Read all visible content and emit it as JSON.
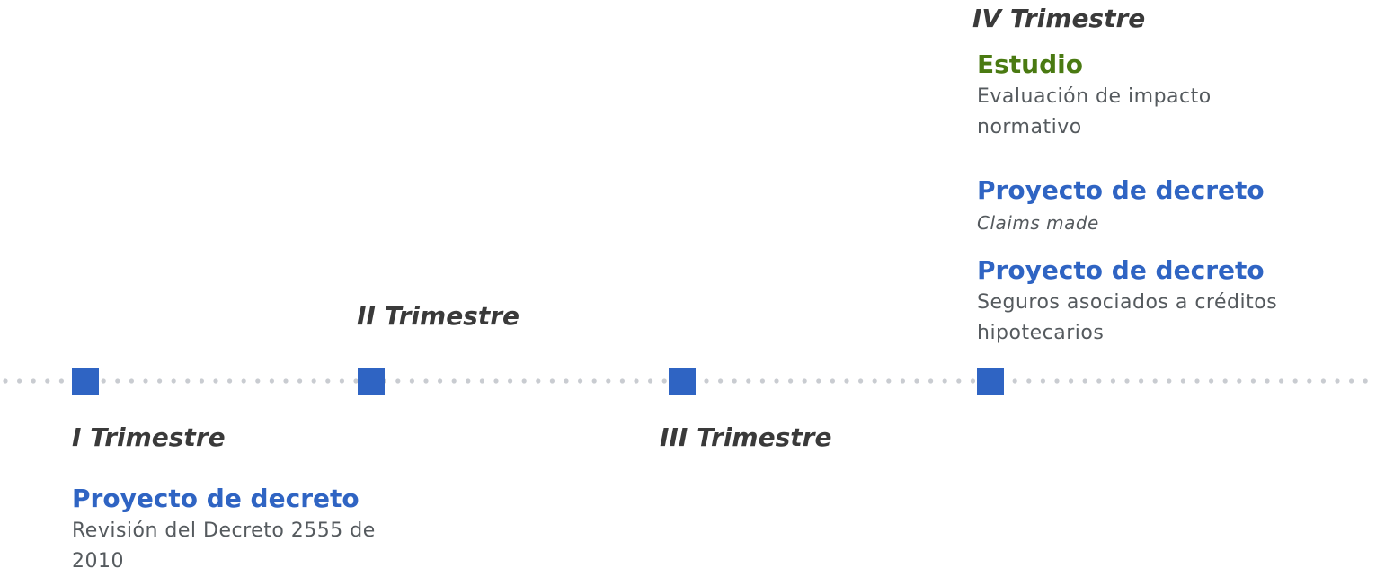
{
  "colors": {
    "accent_blue": "#2f64c3",
    "accent_green": "#4a7a12",
    "dot_gray": "#c9ccd1",
    "label_dark": "#3a3a3a",
    "desc_gray": "#555a5e"
  },
  "timeline": {
    "quarters": [
      {
        "label": "I Trimestre"
      },
      {
        "label": "II Trimestre"
      },
      {
        "label": "III Trimestre"
      },
      {
        "label": "IV Trimestre"
      }
    ]
  },
  "items": {
    "q1": [
      {
        "title": "Proyecto de decreto",
        "desc": "Revisión del Decreto 2555 de 2010"
      }
    ],
    "q4": [
      {
        "title": "Estudio",
        "desc": "Evaluación de impacto normativo"
      },
      {
        "title": "Proyecto de decreto",
        "desc": "Claims made"
      },
      {
        "title": "Proyecto de decreto",
        "desc": "Seguros asociados a créditos hipotecarios"
      }
    ]
  }
}
